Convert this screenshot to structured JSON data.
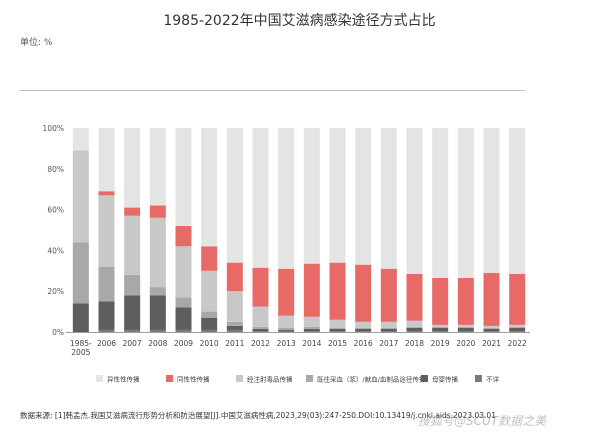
{
  "chart_data": {
    "type": "bar",
    "stacked": true,
    "title": "1985-2022年中国艾滋病感染途径方式占比",
    "unit_label": "单位: %",
    "ylim": [
      0,
      100
    ],
    "y_ticks": [
      "0%",
      "20%",
      "40%",
      "60%",
      "80%",
      "100%"
    ],
    "categories": [
      "1985-2005",
      "2006",
      "2007",
      "2008",
      "2009",
      "2010",
      "2011",
      "2012",
      "2013",
      "2014",
      "2015",
      "2016",
      "2017",
      "2018",
      "2019",
      "2020",
      "2021",
      "2022"
    ],
    "series": [
      {
        "name": "不详",
        "color": "#7b7b7b",
        "values": [
          0,
          1,
          1,
          1,
          1,
          1,
          1,
          0.5,
          0.5,
          0.5,
          0.5,
          0.5,
          0.5,
          0.5,
          0.5,
          0.5,
          0.5,
          0.5
        ]
      },
      {
        "name": "母婴传播",
        "color": "#5e5e5e",
        "values": [
          14,
          14,
          17,
          17,
          11,
          6,
          2,
          1,
          0.5,
          1,
          1,
          1,
          1,
          1.5,
          1.5,
          1.5,
          1,
          1.5
        ]
      },
      {
        "name": "既往采血（浆）/献血/血制品途径传播",
        "color": "#a8a8a8",
        "values": [
          30,
          17,
          10,
          4,
          5,
          3,
          2,
          1,
          1,
          1,
          0.5,
          0.5,
          0.5,
          0.5,
          0.5,
          0.5,
          0.5,
          0.5
        ]
      },
      {
        "name": "经注射毒品传播",
        "color": "#c8c8c8",
        "values": [
          45,
          35,
          29,
          34,
          25,
          20,
          15,
          10,
          6,
          5,
          4,
          3,
          3,
          3,
          1,
          1,
          1,
          1
        ]
      },
      {
        "name": "同性性传播",
        "color": "#e86a66",
        "values": [
          0,
          2,
          4,
          6,
          10,
          12,
          14,
          19,
          23,
          26,
          28,
          28,
          26,
          23,
          23,
          23,
          26,
          25
        ]
      },
      {
        "name": "异性性传播",
        "color": "#e4e4e4",
        "values": [
          11,
          31,
          39,
          38,
          48,
          58,
          66,
          68.5,
          69,
          66.5,
          66,
          67,
          69,
          71.5,
          73.5,
          73.5,
          71,
          71.5
        ]
      }
    ],
    "legend": [
      "异性性传播",
      "同性性传播",
      "经注射毒品传播",
      "既往采血（浆）/献血/血制品途径传播",
      "母婴传播",
      "不详"
    ],
    "legend_colors": [
      "#e4e4e4",
      "#e86a66",
      "#c8c8c8",
      "#a8a8a8",
      "#5e5e5e",
      "#7b7b7b"
    ],
    "legend_position": "bottom",
    "grid": false
  },
  "source": "数据来源: [1]韩孟杰.我国艾滋病流行形势分析和防治展望[J].中国艾滋病性病,2023,29(03):247-250.DOI:10.13419/j.cnki.aids.2023.03.01",
  "watermark": "搜狐号@SCUT数据之美"
}
